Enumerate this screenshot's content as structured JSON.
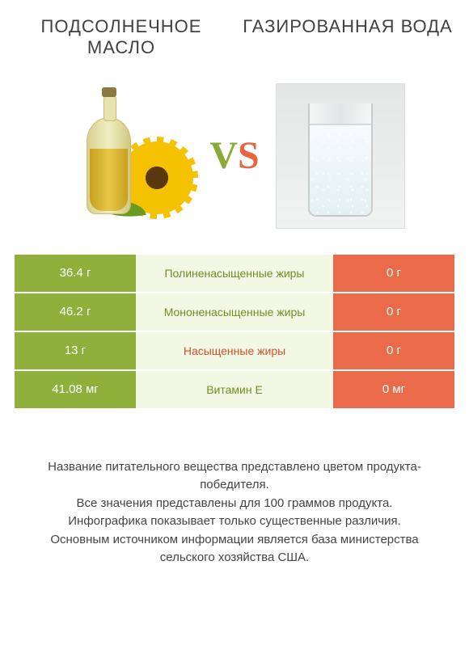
{
  "colors": {
    "left": "#8fb03a",
    "right": "#e96b4a",
    "mid_bg": "#f3f8e5",
    "mid_text_left": "#6f8f22",
    "mid_text_right": "#d24f2a"
  },
  "titles": {
    "left": "ПОДСОЛНЕЧНОЕ МАСЛО",
    "right": "ГАЗИРОВАННАЯ ВОДА"
  },
  "vs": {
    "v": "V",
    "s": "S"
  },
  "rows": [
    {
      "left": "36.4 г",
      "label": "Полиненасыщенные жиры",
      "right": "0 г",
      "winner": "left"
    },
    {
      "left": "46.2 г",
      "label": "Мононенасыщенные жиры",
      "right": "0 г",
      "winner": "left"
    },
    {
      "left": "13 г",
      "label": "Насыщенные жиры",
      "right": "0 г",
      "winner": "right"
    },
    {
      "left": "41.08 мг",
      "label": "Витамин E",
      "right": "0 мг",
      "winner": "left"
    }
  ],
  "footer": {
    "l1": "Название питательного вещества представлено цветом продукта-победителя.",
    "l2": "Все значения представлены для 100 граммов продукта.",
    "l3": "Инфографика показывает только существенные различия.",
    "l4": "Основным источником информации является база министерства сельского хозяйства США."
  }
}
